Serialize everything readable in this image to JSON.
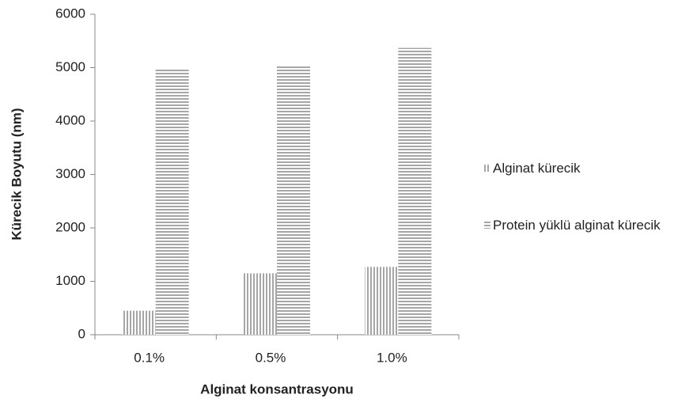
{
  "chart_data": {
    "type": "bar",
    "x_label": "Alginat konsantrasyonu",
    "y_label": "Kürecik  Boyutu (nm)",
    "categories": [
      "0.1%",
      "0.5%",
      "1.0%"
    ],
    "series": [
      {
        "name": "Alginat kürecik",
        "color": "#a6a6a6",
        "pattern": "vertical",
        "values": [
          450,
          1150,
          1270
        ]
      },
      {
        "name": "Protein yüklü alginat kürecik",
        "color": "#a6a6a6",
        "pattern": "horizontal",
        "values": [
          4970,
          5030,
          5370
        ]
      }
    ],
    "ylim": [
      0,
      6000
    ],
    "yticks": [
      0,
      1000,
      2000,
      3000,
      4000,
      5000,
      6000
    ],
    "grid": false,
    "legend": "right"
  }
}
